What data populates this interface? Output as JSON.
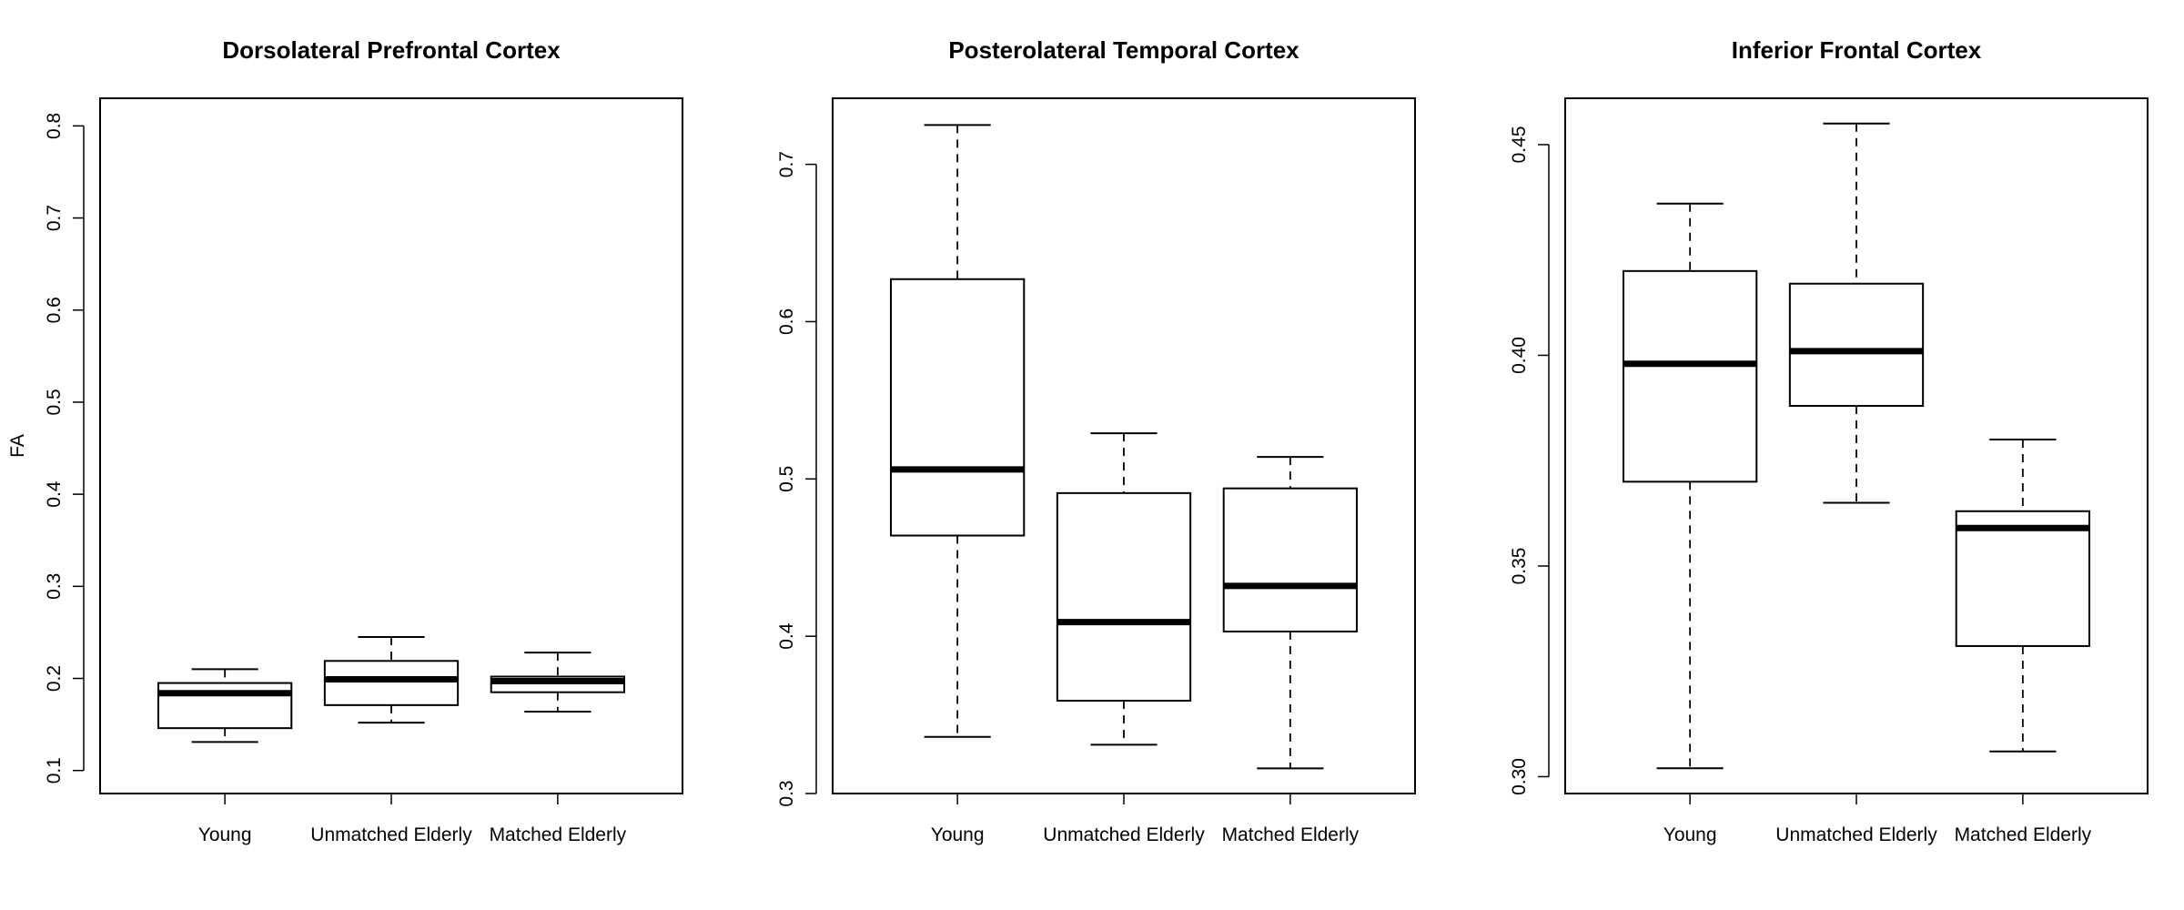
{
  "chart_data": [
    {
      "type": "boxplot",
      "title": "Dorsolateral Prefrontal Cortex",
      "xlabel": "",
      "ylabel": "FA",
      "ylim": [
        0.075,
        0.83
      ],
      "yticks": [
        "0.1",
        "0.2",
        "0.3",
        "0.4",
        "0.5",
        "0.6",
        "0.7",
        "0.8"
      ],
      "categories": [
        "Young",
        "Unmatched Elderly",
        "Matched Elderly"
      ],
      "boxes": [
        {
          "min": 0.131,
          "q1": 0.146,
          "median": 0.184,
          "q3": 0.195,
          "max": 0.21
        },
        {
          "min": 0.152,
          "q1": 0.171,
          "median": 0.199,
          "q3": 0.219,
          "max": 0.245
        },
        {
          "min": 0.164,
          "q1": 0.185,
          "median": 0.197,
          "q3": 0.202,
          "max": 0.228
        }
      ]
    },
    {
      "type": "boxplot",
      "title": "Posterolateral Temporal Cortex",
      "xlabel": "",
      "ylabel": "",
      "ylim": [
        0.3,
        0.742
      ],
      "yticks": [
        "0.3",
        "0.4",
        "0.5",
        "0.6",
        "0.7"
      ],
      "categories": [
        "Young",
        "Unmatched Elderly",
        "Matched Elderly"
      ],
      "boxes": [
        {
          "min": 0.336,
          "q1": 0.464,
          "median": 0.506,
          "q3": 0.627,
          "max": 0.725
        },
        {
          "min": 0.331,
          "q1": 0.359,
          "median": 0.409,
          "q3": 0.491,
          "max": 0.529
        },
        {
          "min": 0.316,
          "q1": 0.403,
          "median": 0.432,
          "q3": 0.494,
          "max": 0.514
        }
      ]
    },
    {
      "type": "boxplot",
      "title": "Inferior Frontal Cortex",
      "xlabel": "",
      "ylabel": "",
      "ylim": [
        0.296,
        0.461
      ],
      "yticks": [
        "0.30",
        "0.35",
        "0.40",
        "0.45"
      ],
      "categories": [
        "Young",
        "Unmatched Elderly",
        "Matched Elderly"
      ],
      "boxes": [
        {
          "min": 0.302,
          "q1": 0.37,
          "median": 0.398,
          "q3": 0.42,
          "max": 0.436
        },
        {
          "min": 0.365,
          "q1": 0.388,
          "median": 0.401,
          "q3": 0.417,
          "max": 0.455
        },
        {
          "min": 0.306,
          "q1": 0.331,
          "median": 0.359,
          "q3": 0.363,
          "max": 0.38
        }
      ]
    }
  ]
}
